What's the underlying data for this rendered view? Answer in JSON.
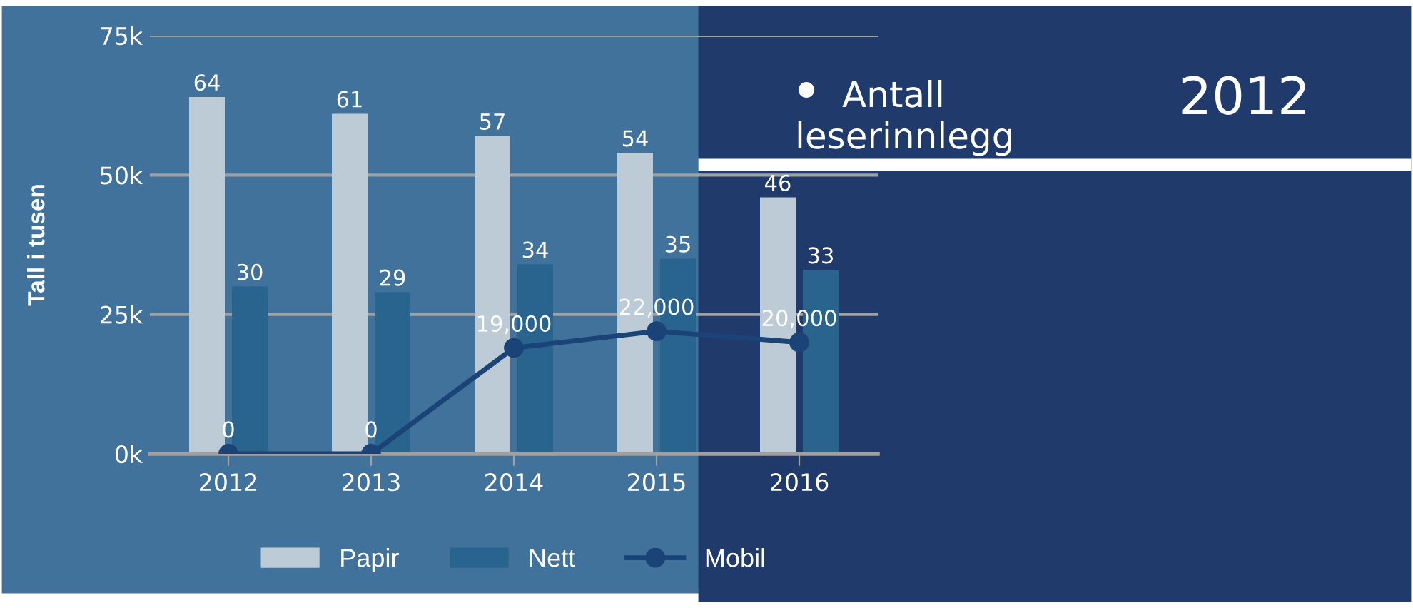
{
  "chart_data": {
    "type": "bar",
    "ylabel": "Tall i tusen",
    "categories": [
      "2012",
      "2013",
      "2014",
      "2015",
      "2016"
    ],
    "series": [
      {
        "name": "Papir",
        "color": "#bccbd6",
        "values": [
          64,
          61,
          57,
          54,
          46
        ],
        "data_labels": true
      },
      {
        "name": "Nett",
        "color": "#29648f",
        "values": [
          30,
          29,
          34,
          35,
          33
        ],
        "data_labels": true
      },
      {
        "name": "Mobil",
        "type": "line",
        "axis": "y2",
        "color": "#1a4377",
        "marker": "circle",
        "values": [
          0,
          0,
          19000,
          22000,
          20000
        ],
        "value_labels": [
          "0",
          "0",
          "19,000",
          "22,000",
          "20,000"
        ]
      }
    ],
    "ylim": [
      0,
      75
    ],
    "yticks": [
      {
        "value": 0,
        "label": "0k"
      },
      {
        "value": 25,
        "label": "25k"
      },
      {
        "value": 50,
        "label": "50k"
      },
      {
        "value": 75,
        "label": "75k"
      }
    ],
    "y2lim": [
      0,
      75000
    ],
    "grid": "y",
    "legend": "bottom",
    "annotations": [
      "Antall leserinnlegg",
      "2012"
    ]
  }
}
